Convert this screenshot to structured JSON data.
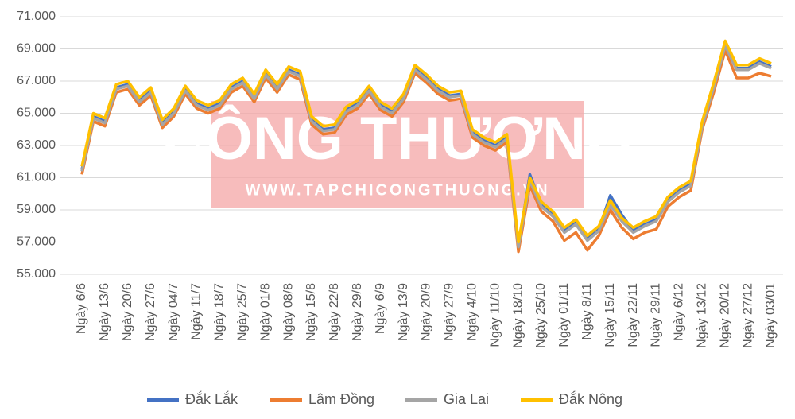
{
  "chart_data": {
    "type": "line",
    "watermark": {
      "title": "CÔNG THƯƠNG",
      "url": "WWW.TAPCHICONGTHUONG.VN"
    },
    "categories": [
      "Ngày 6/6",
      null,
      "Ngày 13/6",
      null,
      "Ngày 20/6",
      null,
      "Ngày 27/6",
      null,
      "Ngày 04/7",
      null,
      "Ngày 11/7",
      null,
      "Ngày 18/7",
      null,
      "Ngày 25/7",
      null,
      "Ngày 01/8",
      null,
      "Ngày 08/8",
      null,
      "Ngày 15/8",
      null,
      "Ngày 22/8",
      null,
      "Ngày 29/8",
      null,
      "Ngày 6/9",
      null,
      "Ngày 13/9",
      null,
      "Ngày 20/9",
      null,
      "Ngày 27/9",
      null,
      "Ngày 4/10",
      null,
      "Ngày 11/10",
      null,
      "Ngày 18/10",
      null,
      "Ngày 25/10",
      null,
      "Ngày 01/11",
      null,
      "Ngày 8/11",
      null,
      "Ngày 15/11",
      null,
      "Ngày 22/11",
      null,
      "Ngày 29/11",
      null,
      "Ngày 6/12",
      null,
      "Ngày 13/12",
      null,
      "Ngày 20/12",
      null,
      "Ngày 27/12",
      null,
      "Ngày 03/01"
    ],
    "series": [
      {
        "name": "Đắk Lắk",
        "color": "#4472c4",
        "values": [
          61500,
          64800,
          64500,
          66600,
          66800,
          65800,
          66400,
          64400,
          65100,
          66500,
          65600,
          65300,
          65600,
          66600,
          67000,
          66000,
          67500,
          66600,
          67700,
          67400,
          64600,
          64000,
          64100,
          65200,
          65600,
          66500,
          65500,
          65100,
          66000,
          67800,
          67200,
          66500,
          66100,
          66200,
          63800,
          63300,
          63000,
          63500,
          56800,
          61200,
          59300,
          58700,
          57700,
          58200,
          57200,
          57800,
          59900,
          58700,
          57700,
          58100,
          58400,
          59600,
          60200,
          60600,
          64300,
          66700,
          69300,
          67800,
          67800,
          68200,
          67900
        ]
      },
      {
        "name": "Lâm Đồng",
        "color": "#ed7d31",
        "values": [
          61200,
          64500,
          64200,
          66300,
          66500,
          65500,
          66100,
          64100,
          64800,
          66200,
          65300,
          65000,
          65300,
          66300,
          66700,
          65700,
          67200,
          66300,
          67400,
          67100,
          64300,
          63700,
          63800,
          64900,
          65300,
          66200,
          65200,
          64800,
          65700,
          67500,
          66900,
          66200,
          65800,
          65900,
          63500,
          63000,
          62700,
          63200,
          56400,
          60500,
          58900,
          58300,
          57100,
          57600,
          56500,
          57400,
          59000,
          57900,
          57200,
          57600,
          57800,
          59200,
          59800,
          60200,
          64000,
          66300,
          68900,
          67200,
          67200,
          67500,
          67300
        ]
      },
      {
        "name": "Gia Lai",
        "color": "#a5a5a5",
        "values": [
          61400,
          64700,
          64400,
          66500,
          66700,
          65700,
          66300,
          64300,
          65000,
          66400,
          65500,
          65200,
          65500,
          66500,
          66900,
          65900,
          67400,
          66500,
          67600,
          67300,
          64500,
          63900,
          64000,
          65100,
          65500,
          66400,
          65400,
          65000,
          65900,
          67700,
          67100,
          66400,
          66000,
          66100,
          63700,
          63200,
          62900,
          63400,
          56700,
          60800,
          59200,
          58600,
          57600,
          58100,
          57100,
          57700,
          59300,
          58300,
          57600,
          58000,
          58300,
          59500,
          60100,
          60500,
          64200,
          66600,
          69200,
          67700,
          67700,
          68100,
          67800
        ]
      },
      {
        "name": "Đắk Nông",
        "color": "#ffc000",
        "values": [
          61700,
          65000,
          64700,
          66800,
          67000,
          66000,
          66600,
          64600,
          65300,
          66700,
          65800,
          65500,
          65800,
          66800,
          67200,
          66200,
          67700,
          66800,
          67900,
          67600,
          64800,
          64200,
          64300,
          65400,
          65800,
          66700,
          65700,
          65300,
          66200,
          68000,
          67400,
          66700,
          66300,
          66400,
          64000,
          63500,
          63200,
          63700,
          57000,
          61000,
          59500,
          58900,
          57900,
          58400,
          57400,
          58000,
          59600,
          58500,
          57900,
          58300,
          58600,
          59800,
          60400,
          60800,
          64500,
          66900,
          69500,
          68000,
          68000,
          68400,
          68100
        ]
      }
    ],
    "ylim": [
      55000,
      71000
    ],
    "yticks": [
      {
        "value": 55000,
        "label": "55.000"
      },
      {
        "value": 57000,
        "label": "57.000"
      },
      {
        "value": 59000,
        "label": "59.000"
      },
      {
        "value": 61000,
        "label": "61.000"
      },
      {
        "value": 63000,
        "label": "63.000"
      },
      {
        "value": 65000,
        "label": "65.000"
      },
      {
        "value": 67000,
        "label": "67.000"
      },
      {
        "value": 69000,
        "label": "69.000"
      },
      {
        "value": 71000,
        "label": "71.000"
      }
    ],
    "grid": true,
    "legend": "bottom"
  }
}
